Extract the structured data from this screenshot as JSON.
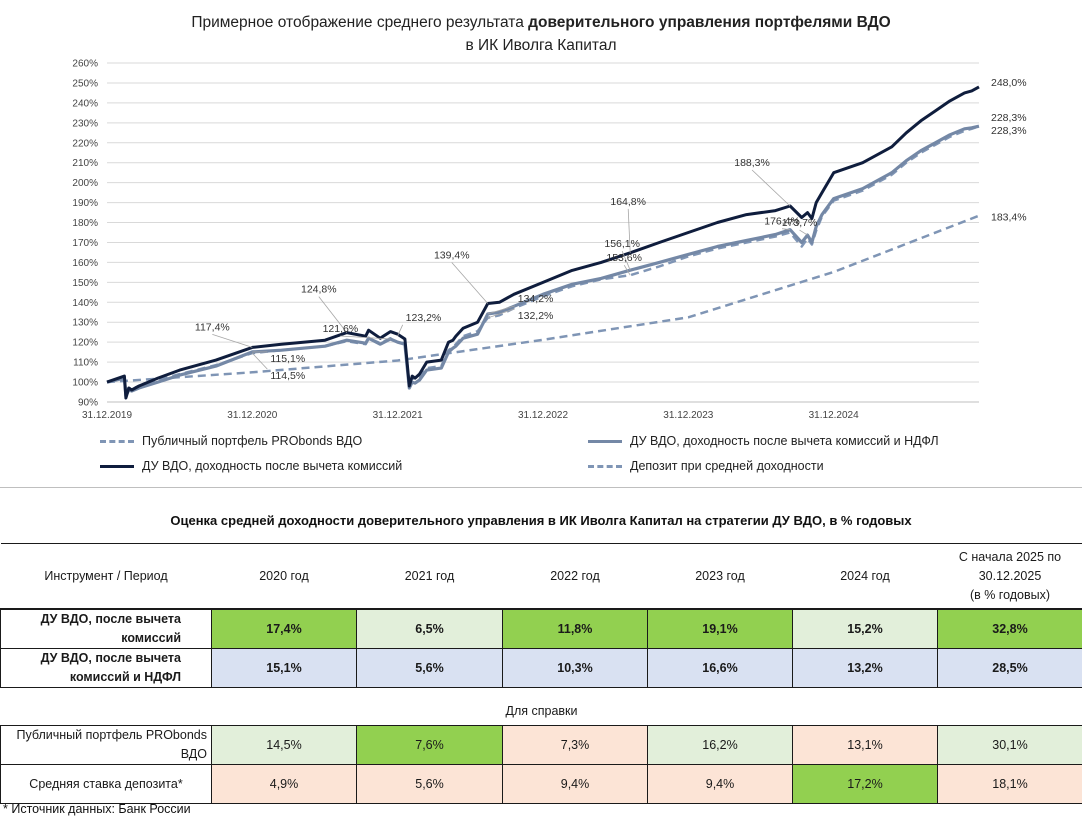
{
  "chart": {
    "title_line1_prefix": "Примерное отображение среднего результата ",
    "title_line1_bold": "доверительного управления портфелями ВДО",
    "title_line2": "в ИК Иволга Капитал"
  },
  "legend": [
    {
      "label": "Публичный портфель PRObonds ВДО",
      "color": "#7f95b5",
      "style": "dashed",
      "weight": 2.5
    },
    {
      "label": "ДУ ВДО, доходность после вычета комиссий и НДФЛ",
      "color": "#7488a6",
      "style": "solid",
      "weight": 3.2
    },
    {
      "label": "ДУ ВДО, доходность после вычета комиссий",
      "color": "#0f1d3d",
      "style": "solid",
      "weight": 3
    },
    {
      "label": "Депозит при средней доходности",
      "color": "#7f95b5",
      "style": "dashed",
      "weight": 2.5
    }
  ],
  "chart_data": {
    "type": "line",
    "title": "Примерное отображение среднего результата доверительного управления портфелями ВДО в ИК Иволга Капитал",
    "xlabel": "",
    "ylabel": "",
    "x_ticks": [
      "31.12.2019",
      "31.12.2020",
      "31.12.2021",
      "31.12.2022",
      "31.12.2023",
      "31.12.2024"
    ],
    "x_range": [
      2019.0,
      2025.0
    ],
    "ylim": [
      90,
      260
    ],
    "y_ticks": [
      "90%",
      "100%",
      "110%",
      "120%",
      "130%",
      "140%",
      "150%",
      "160%",
      "170%",
      "180%",
      "190%",
      "200%",
      "210%",
      "220%",
      "230%",
      "240%",
      "250%",
      "260%"
    ],
    "grid": true,
    "series": [
      {
        "name": "ДУ ВДО, доходность после вычета комиссий",
        "x": [
          0,
          0.12,
          0.13,
          0.15,
          0.17,
          0.22,
          0.35,
          0.5,
          0.75,
          1,
          1.2,
          1.5,
          1.65,
          1.78,
          1.8,
          1.88,
          1.95,
          2,
          2.05,
          2.08,
          2.1,
          2.12,
          2.15,
          2.2,
          2.3,
          2.35,
          2.38,
          2.4,
          2.45,
          2.55,
          2.62,
          2.7,
          2.8,
          3,
          3.2,
          3.4,
          3.6,
          3.8,
          4,
          4.2,
          4.4,
          4.6,
          4.7,
          4.78,
          4.82,
          4.85,
          4.88,
          4.92,
          5,
          5.2,
          5.4,
          5.5,
          5.6,
          5.7,
          5.8,
          5.9,
          5.95,
          6
        ],
        "y": [
          100,
          103,
          92,
          97,
          96,
          98,
          102,
          106,
          111,
          117.4,
          119,
          121,
          124.8,
          123,
          126,
          122,
          125.3,
          124,
          121.6,
          98,
          103,
          102,
          104,
          110,
          111,
          120,
          121,
          123,
          127,
          130,
          139.4,
          140,
          144,
          150,
          156,
          160,
          164.8,
          170,
          175,
          180,
          184,
          186,
          188.3,
          182.5,
          185,
          182,
          190,
          195,
          205,
          210,
          218,
          225,
          231,
          236,
          241,
          245,
          246,
          248
        ]
      },
      {
        "name": "ДУ ВДО, доходность после вычета комиссий и НДФЛ",
        "x": [
          0,
          0.12,
          0.13,
          0.15,
          0.17,
          0.22,
          0.35,
          0.5,
          0.75,
          1,
          1.2,
          1.5,
          1.65,
          1.78,
          1.8,
          1.88,
          1.95,
          2,
          2.05,
          2.08,
          2.1,
          2.12,
          2.15,
          2.2,
          2.3,
          2.35,
          2.38,
          2.4,
          2.45,
          2.55,
          2.62,
          2.7,
          2.8,
          3,
          3.2,
          3.4,
          3.6,
          3.8,
          4,
          4.2,
          4.4,
          4.6,
          4.7,
          4.78,
          4.82,
          4.85,
          4.88,
          4.92,
          5,
          5.2,
          5.4,
          5.5,
          5.6,
          5.7,
          5.8,
          5.9,
          5.95,
          6
        ],
        "y": [
          100,
          102,
          93,
          96,
          95.5,
          97,
          100,
          103.5,
          108,
          115.1,
          116,
          118,
          121,
          119.5,
          122,
          119,
          121.6,
          120,
          119,
          97,
          100,
          99.5,
          101,
          106,
          107,
          115,
          117,
          118,
          122,
          124,
          134.2,
          135,
          138,
          144,
          149,
          152,
          156.1,
          160,
          164,
          168,
          171,
          174,
          176.4,
          170,
          173.7,
          170,
          178,
          184,
          192,
          197,
          205,
          211,
          216,
          220,
          224,
          227,
          227.5,
          228.3
        ]
      },
      {
        "name": "Публичный портфель PRObonds ВДО",
        "x": [
          0,
          0.12,
          0.13,
          0.15,
          0.17,
          0.22,
          0.35,
          0.5,
          0.75,
          1,
          1.2,
          1.5,
          1.65,
          1.78,
          1.8,
          1.88,
          1.95,
          2,
          2.05,
          2.08,
          2.1,
          2.12,
          2.15,
          2.2,
          2.3,
          2.35,
          2.38,
          2.4,
          2.45,
          2.55,
          2.62,
          2.7,
          2.8,
          3,
          3.2,
          3.4,
          3.6,
          3.8,
          4,
          4.2,
          4.4,
          4.6,
          4.7,
          4.78,
          4.82,
          4.85,
          4.88,
          4.92,
          5,
          5.2,
          5.4,
          5.5,
          5.6,
          5.7,
          5.8,
          5.9,
          5.95,
          6
        ],
        "y": [
          100,
          101.5,
          96,
          97,
          96.5,
          98,
          101,
          104,
          108.5,
          114.5,
          116,
          118,
          120.5,
          119,
          122,
          119.5,
          122,
          120,
          119.5,
          99,
          102,
          101.5,
          103,
          107,
          108,
          116,
          117.5,
          119,
          123,
          125.5,
          132.2,
          133.5,
          137,
          143,
          148,
          151.5,
          153.6,
          158,
          163,
          167,
          170,
          173,
          175,
          168,
          172,
          169,
          176,
          183,
          191,
          196,
          204,
          210,
          215,
          219,
          223,
          226,
          227,
          228.3
        ]
      },
      {
        "name": "Депозит при средней доходности",
        "x": [
          0,
          1,
          2,
          3,
          4,
          5,
          6
        ],
        "y": [
          100,
          104.9,
          110.8,
          121.2,
          132.5,
          155.2,
          183.4
        ]
      }
    ],
    "annotations": [
      {
        "text": "117,4%",
        "x": 1.0,
        "y": 117.4
      },
      {
        "text": "115,1%",
        "x": 1.0,
        "y": 115.1
      },
      {
        "text": "114,5%",
        "x": 1.0,
        "y": 114.5
      },
      {
        "text": "124,8%",
        "x": 1.65,
        "y": 124.8
      },
      {
        "text": "123,2%",
        "x": 2.0,
        "y": 123.2
      },
      {
        "text": "121,6%",
        "x": 1.95,
        "y": 121.6
      },
      {
        "text": "139,4%",
        "x": 2.62,
        "y": 139.4
      },
      {
        "text": "134,2%",
        "x": 2.62,
        "y": 134.2
      },
      {
        "text": "132,2%",
        "x": 2.62,
        "y": 132.2
      },
      {
        "text": "164,8%",
        "x": 3.6,
        "y": 164.8
      },
      {
        "text": "156,1%",
        "x": 3.6,
        "y": 156.1
      },
      {
        "text": "153,6%",
        "x": 3.6,
        "y": 153.6
      },
      {
        "text": "188,3%",
        "x": 4.7,
        "y": 188.3
      },
      {
        "text": "176,4%",
        "x": 4.7,
        "y": 176.4
      },
      {
        "text": "173,7%",
        "x": 4.82,
        "y": 173.7
      },
      {
        "text": "248,0%",
        "x": 6.0,
        "y": 248.0
      },
      {
        "text": "228,3%",
        "x": 6.0,
        "y": 228.3
      },
      {
        "text": "228,3%",
        "x": 6.0,
        "y": 228.3
      },
      {
        "text": "183,4%",
        "x": 6.0,
        "y": 183.4
      }
    ]
  },
  "table": {
    "caption": "Оценка средней доходности доверительного управления в ИК Иволга Капитал на стратегии ДУ ВДО, в % годовых",
    "header": {
      "instrument": "Инструмент  / Период",
      "periods": [
        "2020 год",
        "2021 год",
        "2022 год",
        "2023 год",
        "2024 год"
      ],
      "ytd_line1": "С начала 2025 по",
      "ytd_line2": "30.12.2025",
      "ytd_line3": "(в % годовых)"
    },
    "rows": [
      {
        "label_line1": "ДУ ВДО, после вычета",
        "label_line2": "комиссий",
        "values": [
          "17,4%",
          "6,5%",
          "11,8%",
          "19,1%",
          "15,2%",
          "32,8%"
        ],
        "colors": [
          "#92d050",
          "#e2efda",
          "#92d050",
          "#92d050",
          "#e2efda",
          "#92d050"
        ]
      },
      {
        "label_line1": "ДУ ВДО, после вычета",
        "label_line2": "комиссий и НДФЛ",
        "values": [
          "15,1%",
          "5,6%",
          "10,3%",
          "16,6%",
          "13,2%",
          "28,5%"
        ],
        "colors": [
          "#d9e1f2",
          "#d9e1f2",
          "#d9e1f2",
          "#d9e1f2",
          "#d9e1f2",
          "#d9e1f2"
        ]
      }
    ],
    "reference_label": "Для справки",
    "reference_rows": [
      {
        "label_line1": "Публичный портфель PRObonds",
        "label_line2": "ВДО",
        "values": [
          "14,5%",
          "7,6%",
          "7,3%",
          "16,2%",
          "13,1%",
          "30,1%"
        ],
        "colors": [
          "#e2efda",
          "#92d050",
          "#fce4d6",
          "#e2efda",
          "#fce4d6",
          "#e2efda"
        ]
      },
      {
        "label_line1": "Средняя ставка депозита*",
        "label_line2": "",
        "values": [
          "4,9%",
          "5,6%",
          "9,4%",
          "9,4%",
          "17,2%",
          "18,1%"
        ],
        "colors": [
          "#fce4d6",
          "#fce4d6",
          "#fce4d6",
          "#fce4d6",
          "#92d050",
          "#fce4d6"
        ]
      }
    ]
  },
  "footnote": "* Источник данных: Банк России"
}
